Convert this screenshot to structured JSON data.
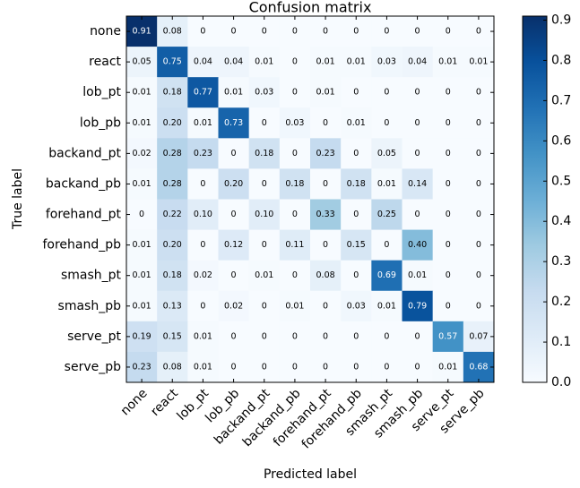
{
  "chart_data": {
    "type": "heatmap",
    "title": "Confusion matrix",
    "x_label": "Predicted label",
    "y_label": "True label",
    "x_categories": [
      "none",
      "react",
      "lob_pt",
      "lob_pb",
      "backand_pt",
      "backand_pb",
      "forehand_pt",
      "forehand_pb",
      "smash_pt",
      "smash_pb",
      "serve_pt",
      "serve_pb"
    ],
    "y_categories": [
      "none",
      "react",
      "lob_pt",
      "lob_pb",
      "backand_pt",
      "backand_pb",
      "forehand_pt",
      "forehand_pb",
      "smash_pt",
      "smash_pb",
      "serve_pt",
      "serve_pb"
    ],
    "values": [
      [
        0.91,
        0.08,
        0,
        0,
        0,
        0,
        0,
        0,
        0,
        0,
        0,
        0
      ],
      [
        0.05,
        0.75,
        0.04,
        0.04,
        0.01,
        0,
        0.01,
        0.01,
        0.03,
        0.04,
        0.01,
        0.01
      ],
      [
        0.01,
        0.18,
        0.77,
        0.01,
        0.03,
        0,
        0.01,
        0,
        0,
        0,
        0,
        0
      ],
      [
        0.01,
        0.2,
        0.01,
        0.73,
        0,
        0.03,
        0,
        0.01,
        0,
        0,
        0,
        0
      ],
      [
        0.02,
        0.28,
        0.23,
        0,
        0.18,
        0,
        0.23,
        0,
        0.05,
        0,
        0,
        0
      ],
      [
        0.01,
        0.28,
        0,
        0.2,
        0,
        0.18,
        0,
        0.18,
        0.01,
        0.14,
        0,
        0
      ],
      [
        0,
        0.22,
        0.1,
        0,
        0.1,
        0,
        0.33,
        0,
        0.25,
        0,
        0,
        0
      ],
      [
        0.01,
        0.2,
        0,
        0.12,
        0,
        0.11,
        0,
        0.15,
        0,
        0.4,
        0,
        0
      ],
      [
        0.01,
        0.18,
        0.02,
        0,
        0.01,
        0,
        0.08,
        0,
        0.69,
        0.01,
        0,
        0
      ],
      [
        0.01,
        0.13,
        0,
        0.02,
        0,
        0.01,
        0,
        0.03,
        0.01,
        0.79,
        0,
        0
      ],
      [
        0.19,
        0.15,
        0.01,
        0,
        0,
        0,
        0,
        0,
        0,
        0,
        0.57,
        0.07
      ],
      [
        0.23,
        0.08,
        0.01,
        0,
        0,
        0,
        0,
        0,
        0,
        0,
        0.01,
        0.68
      ]
    ],
    "value_labels": [
      [
        "0.91",
        "0.08",
        "0",
        "0",
        "0",
        "0",
        "0",
        "0",
        "0",
        "0",
        "0",
        "0"
      ],
      [
        "0.05",
        "0.75",
        "0.04",
        "0.04",
        "0.01",
        "0",
        "0.01",
        "0.01",
        "0.03",
        "0.04",
        "0.01",
        "0.01"
      ],
      [
        "0.01",
        "0.18",
        "0.77",
        "0.01",
        "0.03",
        "0",
        "0.01",
        "0",
        "0",
        "0",
        "0",
        "0"
      ],
      [
        "0.01",
        "0.20",
        "0.01",
        "0.73",
        "0",
        "0.03",
        "0",
        "0.01",
        "0",
        "0",
        "0",
        "0"
      ],
      [
        "0.02",
        "0.28",
        "0.23",
        "0",
        "0.18",
        "0",
        "0.23",
        "0",
        "0.05",
        "0",
        "0",
        "0"
      ],
      [
        "0.01",
        "0.28",
        "0",
        "0.20",
        "0",
        "0.18",
        "0",
        "0.18",
        "0.01",
        "0.14",
        "0",
        "0"
      ],
      [
        "0",
        "0.22",
        "0.10",
        "0",
        "0.10",
        "0",
        "0.33",
        "0",
        "0.25",
        "0",
        "0",
        "0"
      ],
      [
        "0.01",
        "0.20",
        "0",
        "0.12",
        "0",
        "0.11",
        "0",
        "0.15",
        "0",
        "0.40",
        "0",
        "0"
      ],
      [
        "0.01",
        "0.18",
        "0.02",
        "0",
        "0.01",
        "0",
        "0.08",
        "0",
        "0.69",
        "0.01",
        "0",
        "0"
      ],
      [
        "0.01",
        "0.13",
        "0",
        "0.02",
        "0",
        "0.01",
        "0",
        "0.03",
        "0.01",
        "0.79",
        "0",
        "0"
      ],
      [
        "0.19",
        "0.15",
        "0.01",
        "0",
        "0",
        "0",
        "0",
        "0",
        "0",
        "0",
        "0.57",
        "0.07"
      ],
      [
        "0.23",
        "0.08",
        "0.01",
        "0",
        "0",
        "0",
        "0",
        "0",
        "0",
        "0",
        "0.01",
        "0.68"
      ]
    ],
    "colormap": [
      "#f7fbff",
      "#deebf7",
      "#c6dbef",
      "#9ecae1",
      "#6baed6",
      "#4292c6",
      "#2171b5",
      "#08519c",
      "#08306b"
    ],
    "zlim": [
      0,
      0.91
    ],
    "zticks": [
      {
        "value": 0,
        "label": "0.0"
      },
      0.1,
      0.2,
      0.3,
      0.4,
      0.5,
      0.6,
      0.7,
      0.8,
      0.9
    ]
  }
}
